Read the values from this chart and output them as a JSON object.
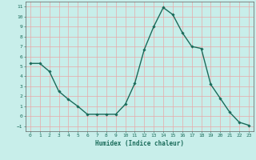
{
  "x": [
    0,
    1,
    2,
    3,
    4,
    5,
    6,
    7,
    8,
    9,
    10,
    11,
    12,
    13,
    14,
    15,
    16,
    17,
    18,
    19,
    20,
    21,
    22,
    23
  ],
  "y": [
    5.3,
    5.3,
    4.5,
    2.5,
    1.7,
    1.0,
    0.2,
    0.2,
    0.2,
    0.2,
    1.2,
    3.3,
    6.7,
    9.0,
    10.9,
    10.2,
    8.4,
    7.0,
    6.8,
    3.2,
    1.8,
    0.4,
    -0.6,
    -0.9
  ],
  "line_color": "#1a6b5a",
  "marker": "D",
  "marker_size": 1.8,
  "bg_color": "#c8eeea",
  "grid_color": "#e8a8a8",
  "xlabel": "Humidex (Indice chaleur)",
  "xlim": [
    -0.5,
    23.5
  ],
  "ylim": [
    -1.5,
    11.5
  ],
  "yticks": [
    -1,
    0,
    1,
    2,
    3,
    4,
    5,
    6,
    7,
    8,
    9,
    10,
    11
  ],
  "xticks": [
    0,
    1,
    2,
    3,
    4,
    5,
    6,
    7,
    8,
    9,
    10,
    11,
    12,
    13,
    14,
    15,
    16,
    17,
    18,
    19,
    20,
    21,
    22,
    23
  ],
  "tick_color": "#1a6b5a",
  "label_color": "#1a6b5a",
  "spine_color": "#606060",
  "tick_labelsize": 4.5,
  "xlabel_fontsize": 5.5,
  "linewidth": 1.0
}
